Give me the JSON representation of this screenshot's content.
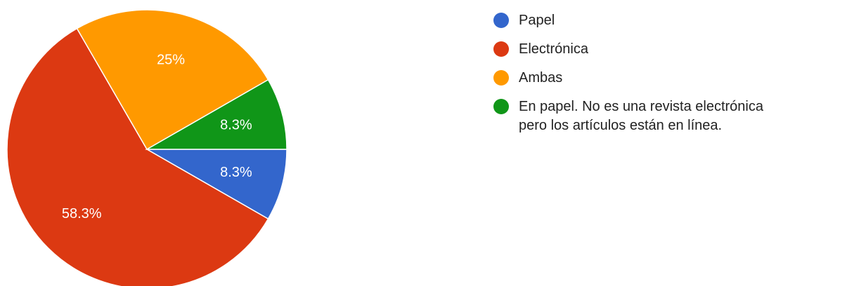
{
  "chart_data": {
    "type": "pie",
    "categories": [
      "Papel",
      "Electrónica",
      "Ambas",
      "En papel. No es una revista electrónica pero los artículos están en línea."
    ],
    "values": [
      8.3,
      58.3,
      25,
      8.3
    ],
    "value_labels": [
      "8.3%",
      "58.3%",
      "25%",
      "8.3%"
    ],
    "colors": [
      "#3366cc",
      "#dc3912",
      "#ff9900",
      "#109618"
    ],
    "legend": "right"
  }
}
